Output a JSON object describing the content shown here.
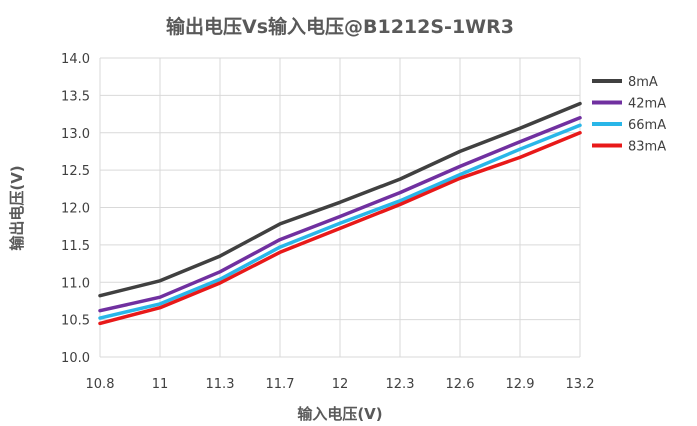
{
  "chart_data": {
    "type": "line",
    "title": "输出电压Vs输入电压@B1212S-1WR3",
    "xlabel": "输入电压(V)",
    "ylabel": "输出电压(V)",
    "categories": [
      "10.8",
      "11",
      "11.3",
      "11.7",
      "12",
      "12.3",
      "12.6",
      "12.9",
      "13.2"
    ],
    "ylim": [
      10.0,
      14.0
    ],
    "yticks": [
      "10.0",
      "10.5",
      "11.0",
      "11.5",
      "12.0",
      "12.5",
      "13.0",
      "13.5",
      "14.0"
    ],
    "grid": true,
    "legend_position": "right",
    "series": [
      {
        "name": "8mA",
        "color": "#404040",
        "values": [
          10.82,
          11.02,
          11.35,
          11.78,
          12.07,
          12.38,
          12.75,
          13.06,
          13.39
        ]
      },
      {
        "name": "42mA",
        "color": "#7030a0",
        "values": [
          10.62,
          10.8,
          11.14,
          11.57,
          11.88,
          12.2,
          12.55,
          12.88,
          13.2
        ]
      },
      {
        "name": "66mA",
        "color": "#29b6e8",
        "values": [
          10.52,
          10.71,
          11.04,
          11.47,
          11.79,
          12.09,
          12.44,
          12.78,
          13.1
        ]
      },
      {
        "name": "83mA",
        "color": "#e81919",
        "values": [
          10.45,
          10.66,
          10.99,
          11.4,
          11.72,
          12.04,
          12.39,
          12.67,
          13.0
        ]
      }
    ]
  }
}
